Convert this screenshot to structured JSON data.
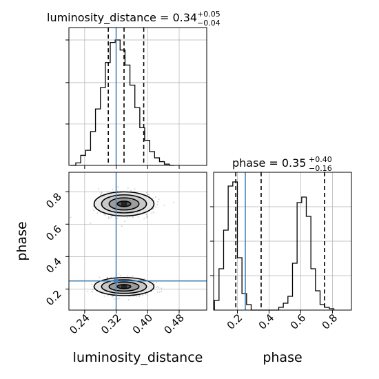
{
  "chart_data": {
    "type": "corner",
    "parameters": [
      "luminosity_distance",
      "phase"
    ],
    "truth": {
      "luminosity_distance": 0.32,
      "phase": 0.25
    },
    "colors": {
      "hist": "#000000",
      "truth": "#4682b4",
      "quantile": "#000000",
      "grid": "#b0b0b0",
      "scatter": "#6e6e6e"
    },
    "luminosity_distance_hist": {
      "title": "luminosity_distance = 0.34",
      "title_plus": "+0.05",
      "title_minus": "−0.04",
      "median": 0.34,
      "quantiles": [
        0.3,
        0.34,
        0.39
      ],
      "xlim": [
        0.2,
        0.55
      ],
      "bin_width": 0.0125,
      "counts": [
        0.0,
        0.02,
        0.08,
        0.12,
        0.27,
        0.45,
        0.62,
        0.82,
        0.98,
        1.0,
        0.92,
        0.8,
        0.64,
        0.46,
        0.3,
        0.2,
        0.11,
        0.06,
        0.03,
        0.01,
        0.0
      ]
    },
    "phase_hist": {
      "title": "phase = 0.35",
      "title_plus": "+0.40",
      "title_minus": "−0.16",
      "median": 0.35,
      "quantiles": [
        0.19,
        0.35,
        0.75
      ],
      "xlim": [
        0.05,
        0.92
      ],
      "xticks": [
        "0.2",
        "0.4",
        "0.6",
        "0.8"
      ],
      "xtick_values": [
        0.2,
        0.4,
        0.6,
        0.8
      ],
      "xlabel": "phase",
      "bin_width": 0.029,
      "counts": [
        0.07,
        0.3,
        0.58,
        0.9,
        0.93,
        0.38,
        0.12,
        0.04,
        0.0,
        0.0,
        0.0,
        0.0,
        0.0,
        0.0,
        0.02,
        0.05,
        0.1,
        0.34,
        0.78,
        0.82,
        0.68,
        0.3,
        0.14,
        0.04,
        0.02,
        0.01
      ]
    },
    "scatter": {
      "xlim": [
        0.2,
        0.55
      ],
      "ylim": [
        0.07,
        0.92
      ],
      "xlabel": "luminosity_distance",
      "ylabel": "phase",
      "xticks": [
        "0.24",
        "0.32",
        "0.40",
        "0.48"
      ],
      "xtick_values": [
        0.24,
        0.32,
        0.4,
        0.48
      ],
      "yticks": [
        "0.2",
        "0.4",
        "0.6",
        "0.8"
      ],
      "ytick_values": [
        0.2,
        0.4,
        0.6,
        0.8
      ],
      "modes": [
        {
          "x": 0.34,
          "y": 0.725,
          "sx": 0.04,
          "sy": 0.06
        },
        {
          "x": 0.34,
          "y": 0.215,
          "sx": 0.04,
          "sy": 0.045
        }
      ]
    }
  }
}
